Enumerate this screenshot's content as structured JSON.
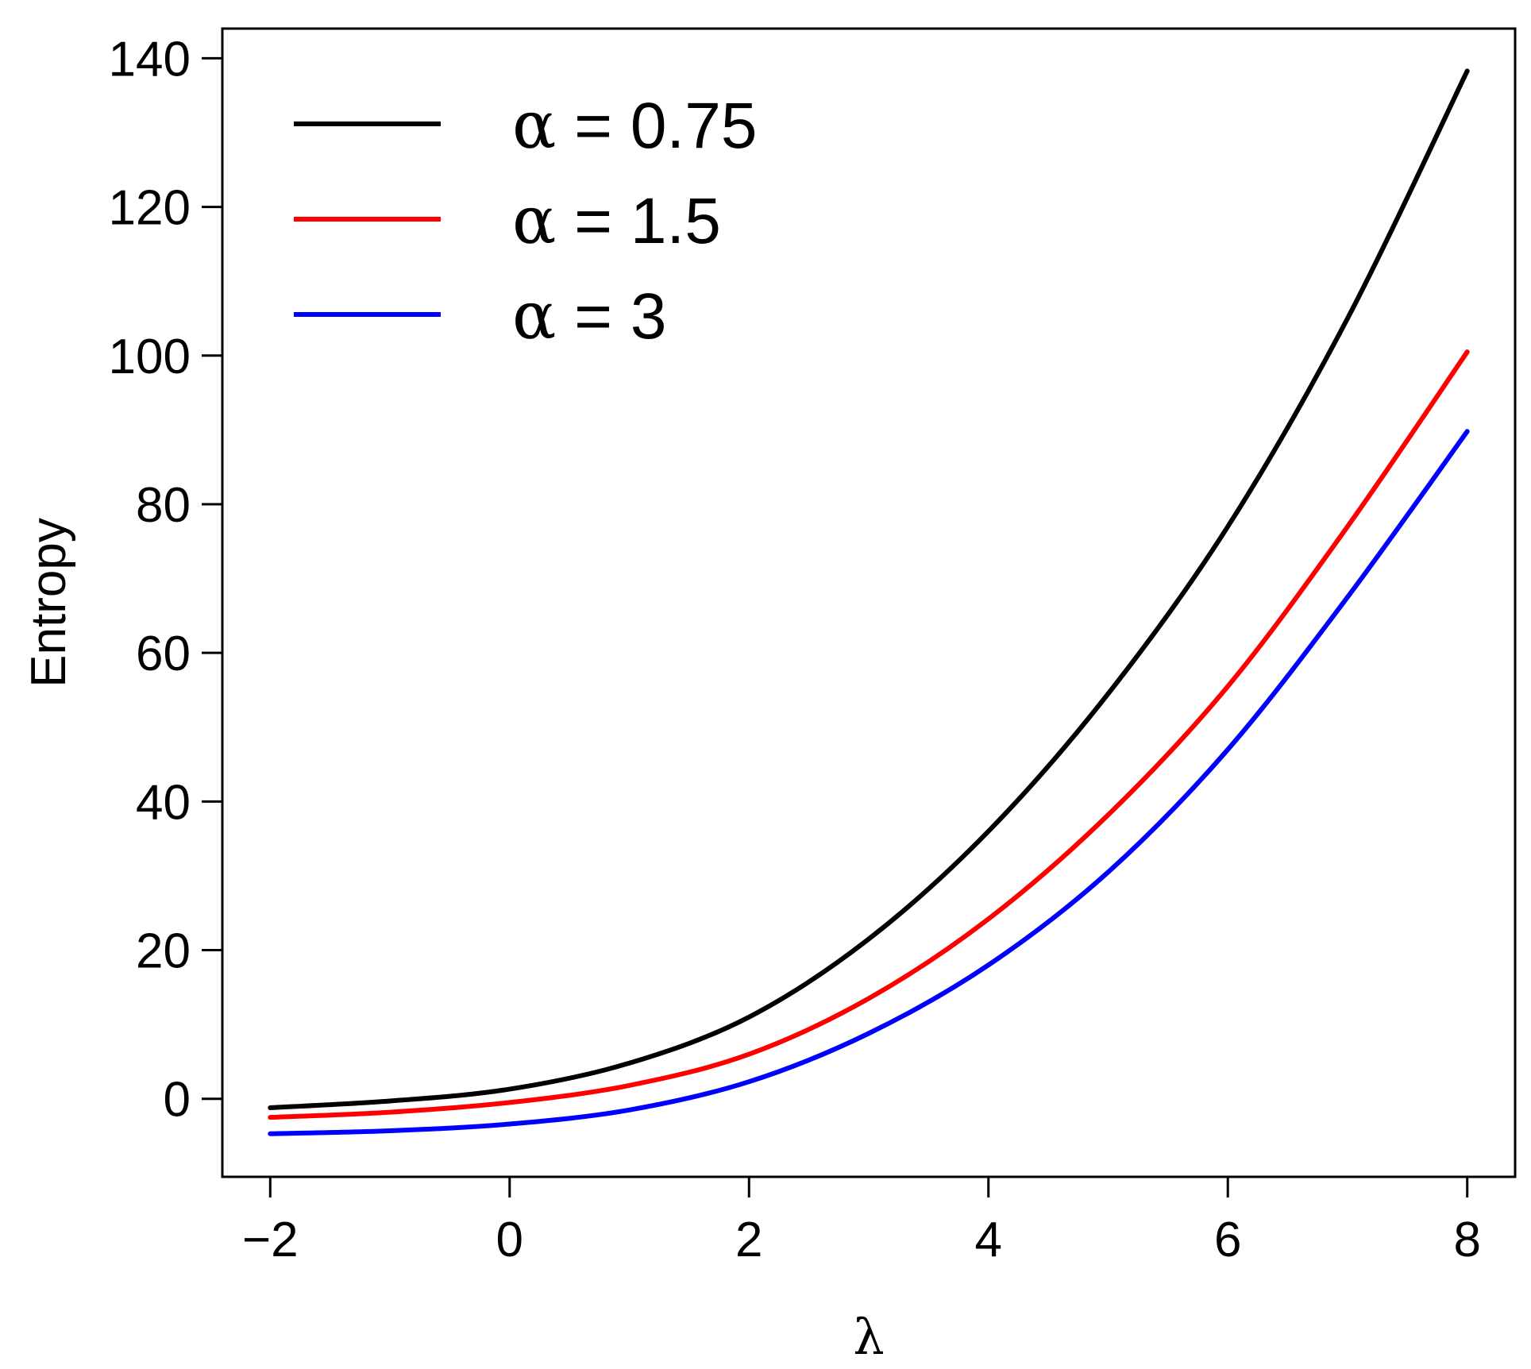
{
  "chart_data": {
    "type": "line",
    "xlabel": "λ",
    "ylabel": "Entropy",
    "xlim": [
      -2.4,
      8.4
    ],
    "ylim": [
      -10.5,
      144
    ],
    "x_ticks": [
      -2,
      0,
      2,
      4,
      6,
      8
    ],
    "x_tick_labels": [
      "−2",
      "0",
      "2",
      "4",
      "6",
      "8"
    ],
    "y_ticks": [
      0,
      20,
      40,
      60,
      80,
      100,
      120,
      140
    ],
    "y_tick_labels": [
      "0",
      "20",
      "40",
      "60",
      "80",
      "100",
      "120",
      "140"
    ],
    "grid": false,
    "legend_position": "top-left",
    "x": [
      -2,
      -1,
      0,
      1,
      2,
      3,
      4,
      5,
      6,
      7,
      8
    ],
    "series": [
      {
        "name": "α = 0.75",
        "symbol": "α",
        "value_text": "= 0.75",
        "color": "#000000",
        "values": [
          -1.2,
          -0.3,
          1.3,
          4.8,
          11.0,
          21.5,
          36.0,
          54.5,
          77.0,
          105.0,
          138.3
        ]
      },
      {
        "name": "α = 1.5",
        "symbol": "α",
        "value_text": "= 1.5",
        "color": "#ff0000",
        "values": [
          -2.5,
          -1.8,
          -0.5,
          1.8,
          6.0,
          13.5,
          24.2,
          38.2,
          55.5,
          77.0,
          100.5
        ]
      },
      {
        "name": "α = 3",
        "symbol": "α",
        "value_text": "= 3",
        "color": "#0000ff",
        "values": [
          -4.7,
          -4.3,
          -3.4,
          -1.5,
          2.3,
          8.8,
          18.0,
          30.5,
          47.0,
          67.5,
          89.8
        ]
      }
    ]
  }
}
